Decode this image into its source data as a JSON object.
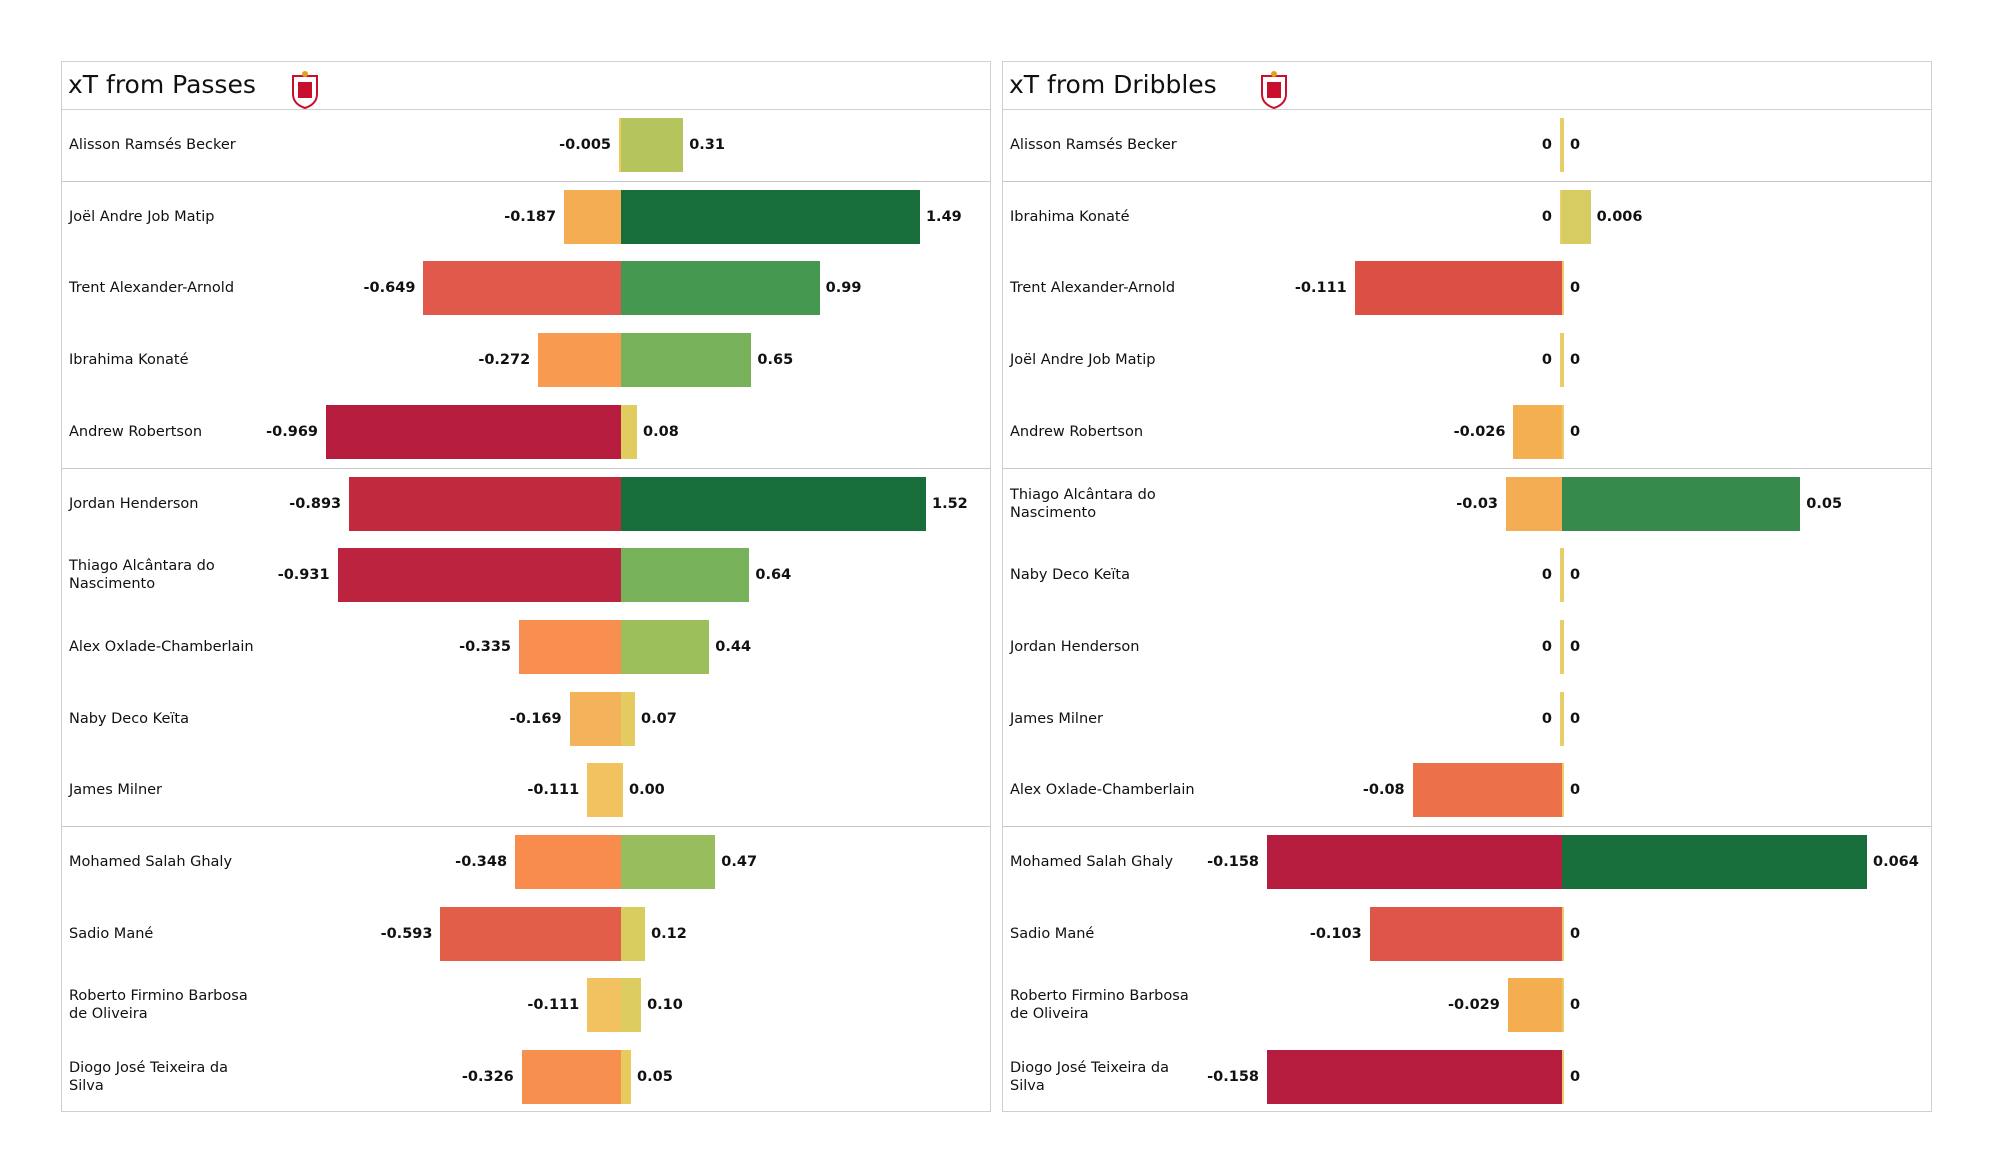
{
  "chart_data": [
    {
      "type": "diverging-bar",
      "title": "xT from Passes",
      "categories": [
        "Alisson Ramsés Becker",
        "Joël Andre Job Matip",
        "Trent Alexander-Arnold",
        "Ibrahima Konaté",
        "Andrew Robertson",
        "Jordan Henderson",
        "Thiago Alcântara do Nascimento",
        "Alex Oxlade-Chamberlain",
        "Naby Deco Keïta",
        "James Milner",
        "Mohamed  Salah Ghaly",
        "Sadio Mané",
        "Roberto Firmino Barbosa de Oliveira",
        "Diogo José Teixeira da Silva"
      ],
      "series": [
        {
          "values": [
            -0.005,
            -0.187,
            -0.649,
            -0.272,
            -0.969,
            -0.893,
            -0.931,
            -0.335,
            -0.169,
            -0.111,
            -0.348,
            -0.593,
            -0.111,
            -0.326
          ],
          "colors": [
            "#f1c95c",
            "#f4ad52",
            "#e0594a",
            "#f89a50",
            "#b51c3e",
            "#c1293f",
            "#bc233e",
            "#f88e4f",
            "#f4b25a",
            "#f2c261",
            "#f78c4d",
            "#e35e48",
            "#f2c261",
            "#f78f4e"
          ]
        },
        {
          "values": [
            0.31,
            1.49,
            0.99,
            0.65,
            0.08,
            1.52,
            0.64,
            0.44,
            0.07,
            0,
            0.47,
            0.12,
            0.1,
            0.05
          ],
          "value_labels": [
            "0.31",
            "1.49",
            "0.99",
            "0.65",
            "0.08",
            "1.52",
            "0.64",
            "0.44",
            "0.07",
            "0.00",
            "0.47",
            "0.12",
            "0.10",
            "0.05"
          ],
          "colors": [
            "#b5c45c",
            "#176e3a",
            "#45984f",
            "#77b15a",
            "#e1cc5f",
            "#176e3a",
            "#77b15a",
            "#9cbf5c",
            "#e4cb5f",
            "#f0c860",
            "#97bd5c",
            "#dacd60",
            "#ddcc60",
            "#e8ca5f"
          ]
        }
      ]
    },
    {
      "type": "diverging-bar",
      "title": "xT from Dribbles",
      "categories": [
        "Alisson Ramsés Becker",
        "Ibrahima Konaté",
        "Trent Alexander-Arnold",
        "Joël Andre Job Matip",
        "Andrew Robertson",
        "Thiago Alcântara do Nascimento",
        "Naby Deco Keïta",
        "Jordan Henderson",
        "James Milner",
        "Alex Oxlade-Chamberlain",
        "Mohamed  Salah Ghaly",
        "Sadio Mané",
        "Roberto Firmino Barbosa de Oliveira",
        "Diogo José Teixeira da Silva"
      ],
      "series": [
        {
          "values": [
            0,
            0,
            -0.111,
            0,
            -0.026,
            -0.03,
            0,
            0,
            0,
            -0.08,
            -0.158,
            -0.103,
            -0.029,
            -0.158
          ],
          "colors": [
            "#e8cd6a",
            "#e8cd6a",
            "#dc4f45",
            "#e8cd6a",
            "#f4b050",
            "#f4ad52",
            "#e8cd6a",
            "#e8cd6a",
            "#e8cd6a",
            "#ec7149",
            "#b51c3e",
            "#e0554a",
            "#f4ae50",
            "#b51c3e"
          ]
        },
        {
          "values": [
            0,
            0.006,
            0,
            0,
            0,
            0.05,
            0,
            0,
            0,
            0,
            0.064,
            0,
            0,
            0
          ],
          "colors": [
            "#e8cd6a",
            "#d6cc62",
            "#e8cd6a",
            "#e8cd6a",
            "#e8cd6a",
            "#368a4b",
            "#e8cd6a",
            "#e8cd6a",
            "#e8cd6a",
            "#e8cd6a",
            "#176e3a",
            "#e8cd6a",
            "#e8cd6a",
            "#e8cd6a"
          ]
        }
      ]
    }
  ]
}
